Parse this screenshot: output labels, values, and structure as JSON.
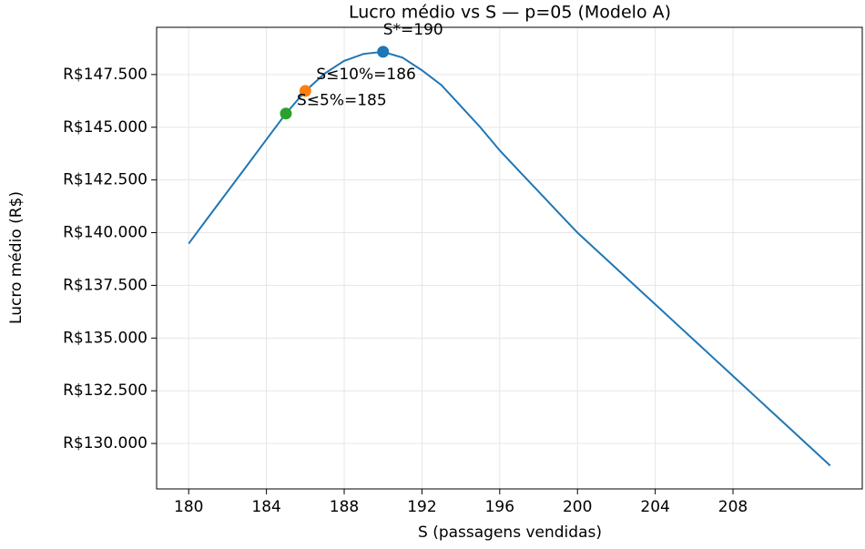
{
  "chart_data": {
    "type": "line",
    "title": "Lucro médio vs S — p=05 (Modelo A)",
    "xlabel": "S (passagens vendidas)",
    "ylabel": "Lucro médio (R$)",
    "x": [
      180,
      181,
      182,
      183,
      184,
      185,
      186,
      187,
      188,
      189,
      190,
      191,
      192,
      193,
      194,
      195,
      196,
      197,
      198,
      199,
      200,
      201,
      202,
      203,
      204,
      205,
      206,
      207,
      208,
      209,
      210,
      211,
      212,
      213
    ],
    "series": [
      {
        "color": "#1f77b4",
        "values": [
          139480,
          140720,
          141950,
          143180,
          144420,
          145650,
          146720,
          147550,
          148150,
          148480,
          148580,
          148300,
          147700,
          147000,
          146000,
          145000,
          143900,
          142920,
          141950,
          140970,
          140000,
          139150,
          138300,
          137450,
          136600,
          135750,
          134900,
          134050,
          133200,
          132350,
          131500,
          130650,
          129800,
          128950
        ]
      }
    ],
    "points": [
      {
        "x": 190,
        "y": 148580,
        "label": "S*=190",
        "color": "#1f77b4"
      },
      {
        "x": 186,
        "y": 146720,
        "label": "S≤10%=186",
        "color": "#ff7f0e"
      },
      {
        "x": 185,
        "y": 145650,
        "label": "S≤5%=185",
        "color": "#2ca02c"
      }
    ],
    "xlim": [
      178.35,
      214.65
    ],
    "ylim": [
      127845,
      149740
    ],
    "xticks": [
      180,
      184,
      188,
      192,
      196,
      200,
      204,
      208
    ],
    "yticks": [
      {
        "value": 130000,
        "label": "R$130.000"
      },
      {
        "value": 132500,
        "label": "R$132.500"
      },
      {
        "value": 135000,
        "label": "R$135.000"
      },
      {
        "value": 137500,
        "label": "R$137.500"
      },
      {
        "value": 140000,
        "label": "R$140.000"
      },
      {
        "value": 142500,
        "label": "R$142.500"
      },
      {
        "value": 145000,
        "label": "R$145.000"
      },
      {
        "value": 147500,
        "label": "R$147.500"
      }
    ],
    "grid": true
  }
}
